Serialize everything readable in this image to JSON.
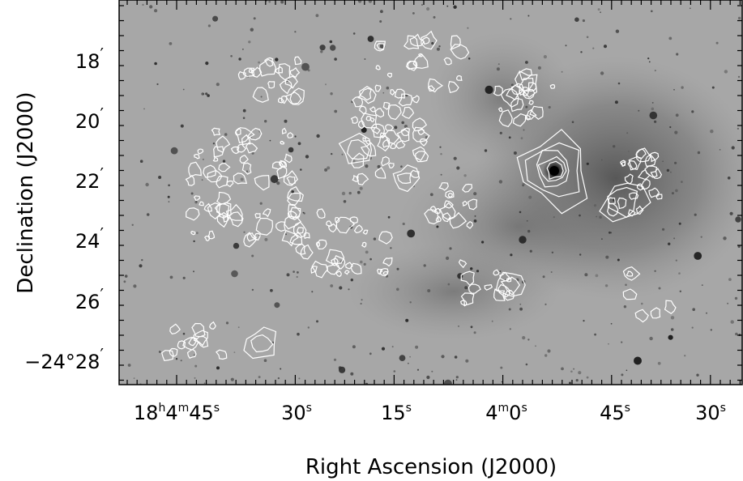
{
  "image": {
    "description_type": "astronomical-greyscale-with-contours",
    "colors": {
      "background": "#a6a6a6",
      "contour": "#ffffff",
      "frame": "#000000"
    }
  },
  "axes": {
    "x_title": "Right Ascension (J2000)",
    "y_title": "Declination (J2000)",
    "x_ticks": [
      {
        "prefix": "18",
        "u1": "h",
        "mid": "4",
        "u2": "m",
        "main": "45",
        "unit": "s"
      },
      {
        "prefix": "",
        "u1": "",
        "mid": "",
        "u2": "",
        "main": "30",
        "unit": "s"
      },
      {
        "prefix": "",
        "u1": "",
        "mid": "",
        "u2": "",
        "main": "15",
        "unit": "s"
      },
      {
        "prefix": "",
        "u1": "",
        "mid": "4",
        "u2": "m",
        "main": "0",
        "unit": "s"
      },
      {
        "prefix": "",
        "u1": "",
        "mid": "",
        "u2": "",
        "main": "45",
        "unit": "s"
      },
      {
        "prefix": "",
        "u1": "",
        "mid": "",
        "u2": "",
        "main": "30",
        "unit": "s"
      }
    ],
    "y_ticks": [
      {
        "main": "18",
        "unit": "′"
      },
      {
        "main": "20",
        "unit": "′"
      },
      {
        "main": "22",
        "unit": "′"
      },
      {
        "main": "24",
        "unit": "′"
      },
      {
        "main": "26",
        "unit": "′"
      },
      {
        "main": "−24°28",
        "unit": "′"
      }
    ]
  }
}
